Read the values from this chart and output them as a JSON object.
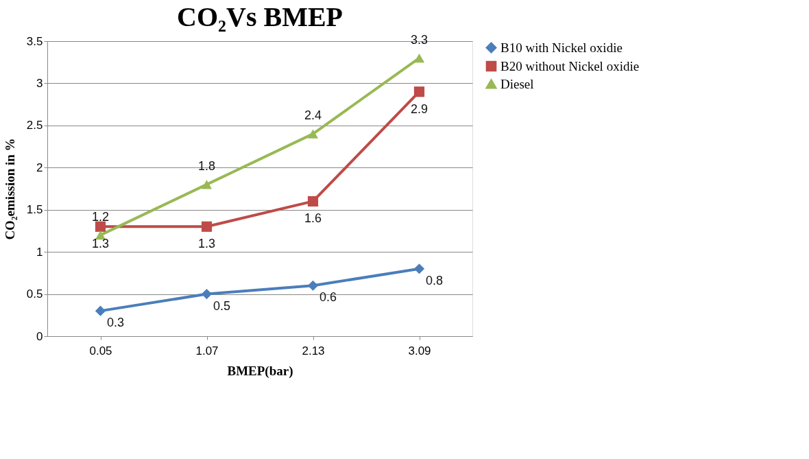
{
  "chart_data": {
    "type": "line",
    "title": "CO₂Vs BMEP",
    "xlabel": "BMEP(bar)",
    "ylabel": "CO₂emission in %",
    "categories": [
      "0.05",
      "1.07",
      "2.13",
      "3.09"
    ],
    "series": [
      {
        "name": "B10 with Nickel oxidie",
        "color": "#4a7ebb",
        "values": [
          0.3,
          0.5,
          0.6,
          0.8
        ],
        "marker": "diamond"
      },
      {
        "name": "B20 without Nickel oxidie",
        "color": "#be4b48",
        "values": [
          1.3,
          1.3,
          1.6,
          2.9
        ],
        "marker": "square"
      },
      {
        "name": "Diesel",
        "color": "#98b954",
        "values": [
          1.2,
          1.8,
          2.4,
          3.3
        ],
        "marker": "triangle"
      }
    ],
    "ylim": [
      0,
      3.5
    ],
    "yticks": [
      0,
      0.5,
      1,
      1.5,
      2,
      2.5,
      3,
      3.5
    ],
    "grid": "y",
    "legend": "right",
    "data_labels": true
  }
}
